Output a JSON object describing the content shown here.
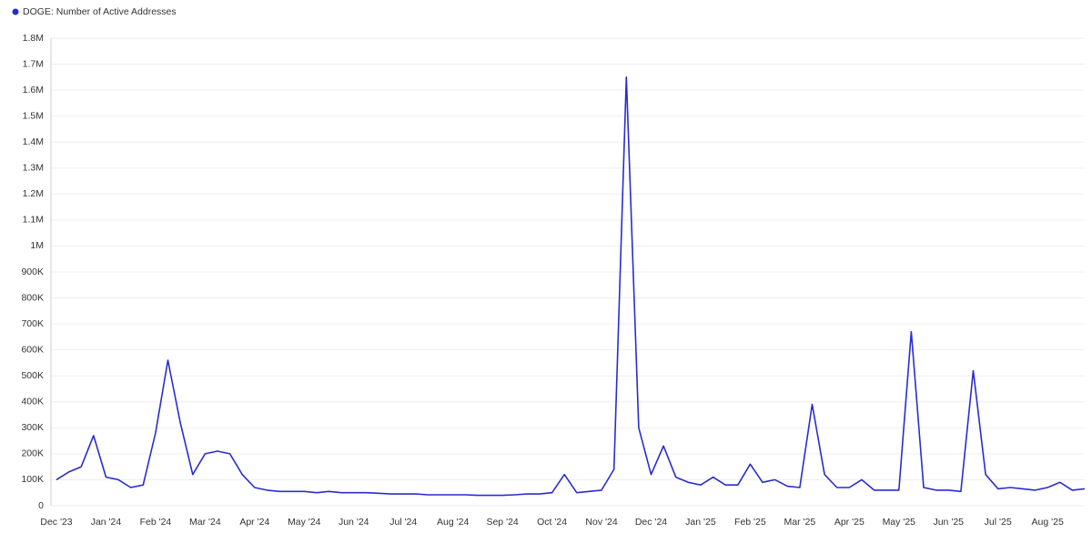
{
  "chart_data": {
    "type": "line",
    "categories": [
      "Dec '23",
      null,
      null,
      null,
      "Jan '24",
      null,
      null,
      null,
      "Feb '24",
      null,
      null,
      null,
      "Mar '24",
      null,
      null,
      null,
      "Apr '24",
      null,
      null,
      null,
      "May '24",
      null,
      null,
      null,
      "Jun '24",
      null,
      null,
      null,
      "Jul '24",
      null,
      null,
      null,
      "Aug '24",
      null,
      null,
      null,
      "Sep '24",
      null,
      null,
      null,
      "Oct '24",
      null,
      null,
      null,
      "Nov '24",
      null,
      null,
      null,
      "Dec '24",
      null,
      null,
      null,
      "Jan '25",
      null,
      null,
      null,
      "Feb '25",
      null,
      null,
      null,
      "Mar '25",
      null,
      null,
      null,
      "Apr '25",
      null,
      null,
      null,
      "May '25",
      null,
      null,
      null,
      "Jun '25",
      null,
      null,
      null,
      "Jul '25",
      null,
      null,
      null,
      "Aug '25",
      null,
      null,
      null
    ],
    "series": [
      {
        "name": "DOGE: Number of Active Addresses",
        "color": "#2a2ccf",
        "values": [
          100000,
          130000,
          150000,
          270000,
          110000,
          100000,
          70000,
          80000,
          280000,
          560000,
          320000,
          120000,
          200000,
          210000,
          200000,
          120000,
          70000,
          60000,
          55000,
          55000,
          55000,
          50000,
          55000,
          50000,
          50000,
          50000,
          48000,
          45000,
          45000,
          45000,
          42000,
          42000,
          42000,
          42000,
          40000,
          40000,
          40000,
          42000,
          45000,
          45000,
          50000,
          120000,
          50000,
          55000,
          60000,
          140000,
          1650000,
          300000,
          120000,
          230000,
          110000,
          90000,
          80000,
          110000,
          80000,
          80000,
          160000,
          90000,
          100000,
          75000,
          70000,
          390000,
          120000,
          70000,
          70000,
          100000,
          60000,
          60000,
          60000,
          670000,
          70000,
          60000,
          60000,
          55000,
          520000,
          120000,
          65000,
          70000,
          65000,
          60000,
          70000,
          90000,
          60000,
          65000
        ]
      }
    ],
    "ylim": [
      0,
      1800000
    ],
    "yticks": [
      0,
      {
        "value": 100000,
        "label": "100K"
      },
      {
        "value": 200000,
        "label": "200K"
      },
      {
        "value": 300000,
        "label": "300K"
      },
      {
        "value": 400000,
        "label": "400K"
      },
      {
        "value": 500000,
        "label": "500K"
      },
      {
        "value": 600000,
        "label": "600K"
      },
      {
        "value": 700000,
        "label": "700K"
      },
      {
        "value": 800000,
        "label": "800K"
      },
      {
        "value": 900000,
        "label": "900K"
      },
      {
        "value": 1000000,
        "label": "1M"
      },
      {
        "value": 1100000,
        "label": "1.1M"
      },
      {
        "value": 1200000,
        "label": "1.2M"
      },
      {
        "value": 1300000,
        "label": "1.3M"
      },
      {
        "value": 1400000,
        "label": "1.4M"
      },
      {
        "value": 1500000,
        "label": "1.5M"
      },
      {
        "value": 1600000,
        "label": "1.6M"
      },
      {
        "value": 1700000,
        "label": "1.7M"
      },
      {
        "value": 1800000,
        "label": "1.8M"
      }
    ],
    "grid": true
  }
}
